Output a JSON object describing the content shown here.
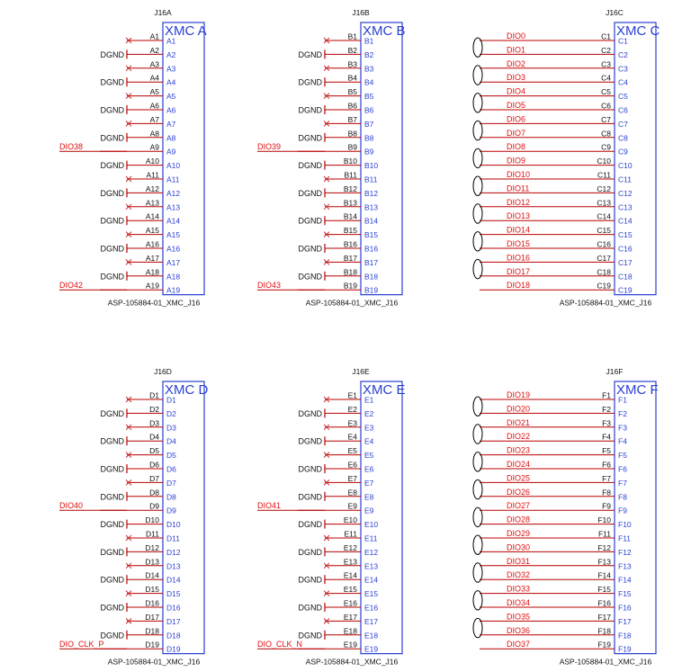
{
  "colors": {
    "symbol": "#2a3fd1",
    "text": "#111111",
    "wire": "#b80000",
    "net": "#e01010",
    "nc": "#c83030",
    "pair": "#000000"
  },
  "dgnd_label": "DGND",
  "blocks": [
    {
      "ref": "J16A",
      "name": "XMC A",
      "part": "ASP-105884-01_XMC_J16",
      "type": "nc",
      "pins": [
        {
          "pin": "A1",
          "kind": "nc"
        },
        {
          "pin": "A2",
          "kind": "gnd"
        },
        {
          "pin": "A3",
          "kind": "nc"
        },
        {
          "pin": "A4",
          "kind": "gnd"
        },
        {
          "pin": "A5",
          "kind": "nc"
        },
        {
          "pin": "A6",
          "kind": "gnd"
        },
        {
          "pin": "A7",
          "kind": "nc"
        },
        {
          "pin": "A8",
          "kind": "gnd"
        },
        {
          "pin": "A9",
          "kind": "net",
          "net": "DIO38"
        },
        {
          "pin": "A10",
          "kind": "gnd"
        },
        {
          "pin": "A11",
          "kind": "nc"
        },
        {
          "pin": "A12",
          "kind": "gnd"
        },
        {
          "pin": "A13",
          "kind": "nc"
        },
        {
          "pin": "A14",
          "kind": "gnd"
        },
        {
          "pin": "A15",
          "kind": "nc"
        },
        {
          "pin": "A16",
          "kind": "gnd"
        },
        {
          "pin": "A17",
          "kind": "nc"
        },
        {
          "pin": "A18",
          "kind": "gnd"
        },
        {
          "pin": "A19",
          "kind": "net",
          "net": "DIO42"
        }
      ]
    },
    {
      "ref": "J16B",
      "name": "XMC B",
      "part": "ASP-105884-01_XMC_J16",
      "type": "nc",
      "pins": [
        {
          "pin": "B1",
          "kind": "nc"
        },
        {
          "pin": "B2",
          "kind": "gnd"
        },
        {
          "pin": "B3",
          "kind": "nc"
        },
        {
          "pin": "B4",
          "kind": "gnd"
        },
        {
          "pin": "B5",
          "kind": "nc"
        },
        {
          "pin": "B6",
          "kind": "gnd"
        },
        {
          "pin": "B7",
          "kind": "nc"
        },
        {
          "pin": "B8",
          "kind": "gnd"
        },
        {
          "pin": "B9",
          "kind": "net",
          "net": "DIO39"
        },
        {
          "pin": "B10",
          "kind": "gnd"
        },
        {
          "pin": "B11",
          "kind": "nc"
        },
        {
          "pin": "B12",
          "kind": "gnd"
        },
        {
          "pin": "B13",
          "kind": "nc"
        },
        {
          "pin": "B14",
          "kind": "gnd"
        },
        {
          "pin": "B15",
          "kind": "nc"
        },
        {
          "pin": "B16",
          "kind": "gnd"
        },
        {
          "pin": "B17",
          "kind": "nc"
        },
        {
          "pin": "B18",
          "kind": "gnd"
        },
        {
          "pin": "B19",
          "kind": "net",
          "net": "DIO43"
        }
      ]
    },
    {
      "ref": "J16C",
      "name": "XMC C",
      "part": "ASP-105884-01_XMC_J16",
      "type": "diff",
      "pins": [
        {
          "pin": "C1",
          "net": "DIO0"
        },
        {
          "pin": "C2",
          "net": "DIO1"
        },
        {
          "pin": "C3",
          "net": "DIO2"
        },
        {
          "pin": "C4",
          "net": "DIO3"
        },
        {
          "pin": "C5",
          "net": "DIO4"
        },
        {
          "pin": "C6",
          "net": "DIO5"
        },
        {
          "pin": "C7",
          "net": "DIO6"
        },
        {
          "pin": "C8",
          "net": "DIO7"
        },
        {
          "pin": "C9",
          "net": "DIO8"
        },
        {
          "pin": "C10",
          "net": "DIO9"
        },
        {
          "pin": "C11",
          "net": "DIO10"
        },
        {
          "pin": "C12",
          "net": "DIO11"
        },
        {
          "pin": "C13",
          "net": "DIO12"
        },
        {
          "pin": "C14",
          "net": "DIO13"
        },
        {
          "pin": "C15",
          "net": "DIO14"
        },
        {
          "pin": "C16",
          "net": "DIO15"
        },
        {
          "pin": "C17",
          "net": "DIO16"
        },
        {
          "pin": "C18",
          "net": "DIO17"
        },
        {
          "pin": "C19",
          "net": "DIO18"
        }
      ]
    },
    {
      "ref": "J16D",
      "name": "XMC D",
      "part": "ASP-105884-01_XMC_J16",
      "type": "nc",
      "pins": [
        {
          "pin": "D1",
          "kind": "nc"
        },
        {
          "pin": "D2",
          "kind": "gnd"
        },
        {
          "pin": "D3",
          "kind": "nc"
        },
        {
          "pin": "D4",
          "kind": "gnd"
        },
        {
          "pin": "D5",
          "kind": "nc"
        },
        {
          "pin": "D6",
          "kind": "gnd"
        },
        {
          "pin": "D7",
          "kind": "nc"
        },
        {
          "pin": "D8",
          "kind": "gnd"
        },
        {
          "pin": "D9",
          "kind": "net",
          "net": "DIO40"
        },
        {
          "pin": "D10",
          "kind": "gnd"
        },
        {
          "pin": "D11",
          "kind": "nc"
        },
        {
          "pin": "D12",
          "kind": "gnd"
        },
        {
          "pin": "D13",
          "kind": "nc"
        },
        {
          "pin": "D14",
          "kind": "gnd"
        },
        {
          "pin": "D15",
          "kind": "nc"
        },
        {
          "pin": "D16",
          "kind": "gnd"
        },
        {
          "pin": "D17",
          "kind": "nc"
        },
        {
          "pin": "D18",
          "kind": "gnd"
        },
        {
          "pin": "D19",
          "kind": "net",
          "net": "DIO_CLK_P"
        }
      ]
    },
    {
      "ref": "J16E",
      "name": "XMC E",
      "part": "ASP-105884-01_XMC_J16",
      "type": "nc",
      "pins": [
        {
          "pin": "E1",
          "kind": "nc"
        },
        {
          "pin": "E2",
          "kind": "gnd"
        },
        {
          "pin": "E3",
          "kind": "nc"
        },
        {
          "pin": "E4",
          "kind": "gnd"
        },
        {
          "pin": "E5",
          "kind": "nc"
        },
        {
          "pin": "E6",
          "kind": "gnd"
        },
        {
          "pin": "E7",
          "kind": "nc"
        },
        {
          "pin": "E8",
          "kind": "gnd"
        },
        {
          "pin": "E9",
          "kind": "net",
          "net": "DIO41"
        },
        {
          "pin": "E10",
          "kind": "gnd"
        },
        {
          "pin": "E11",
          "kind": "nc"
        },
        {
          "pin": "E12",
          "kind": "gnd"
        },
        {
          "pin": "E13",
          "kind": "nc"
        },
        {
          "pin": "E14",
          "kind": "gnd"
        },
        {
          "pin": "E15",
          "kind": "nc"
        },
        {
          "pin": "E16",
          "kind": "gnd"
        },
        {
          "pin": "E17",
          "kind": "nc"
        },
        {
          "pin": "E18",
          "kind": "gnd"
        },
        {
          "pin": "E19",
          "kind": "net",
          "net": "DIO_CLK_N"
        }
      ]
    },
    {
      "ref": "J16F",
      "name": "XMC F",
      "part": "ASP-105884-01_XMC_J16",
      "type": "diff",
      "pins": [
        {
          "pin": "F1",
          "net": "DIO19"
        },
        {
          "pin": "F2",
          "net": "DIO20"
        },
        {
          "pin": "F3",
          "net": "DIO21"
        },
        {
          "pin": "F4",
          "net": "DIO22"
        },
        {
          "pin": "F5",
          "net": "DIO23"
        },
        {
          "pin": "F6",
          "net": "DIO24"
        },
        {
          "pin": "F7",
          "net": "DIO25"
        },
        {
          "pin": "F8",
          "net": "DIO26"
        },
        {
          "pin": "F9",
          "net": "DIO27"
        },
        {
          "pin": "F10",
          "net": "DIO28"
        },
        {
          "pin": "F11",
          "net": "DIO29"
        },
        {
          "pin": "F12",
          "net": "DIO30"
        },
        {
          "pin": "F13",
          "net": "DIO31"
        },
        {
          "pin": "F14",
          "net": "DIO32"
        },
        {
          "pin": "F15",
          "net": "DIO33"
        },
        {
          "pin": "F16",
          "net": "DIO34"
        },
        {
          "pin": "F17",
          "net": "DIO35"
        },
        {
          "pin": "F18",
          "net": "DIO36"
        },
        {
          "pin": "F19",
          "net": "DIO37"
        }
      ]
    }
  ]
}
